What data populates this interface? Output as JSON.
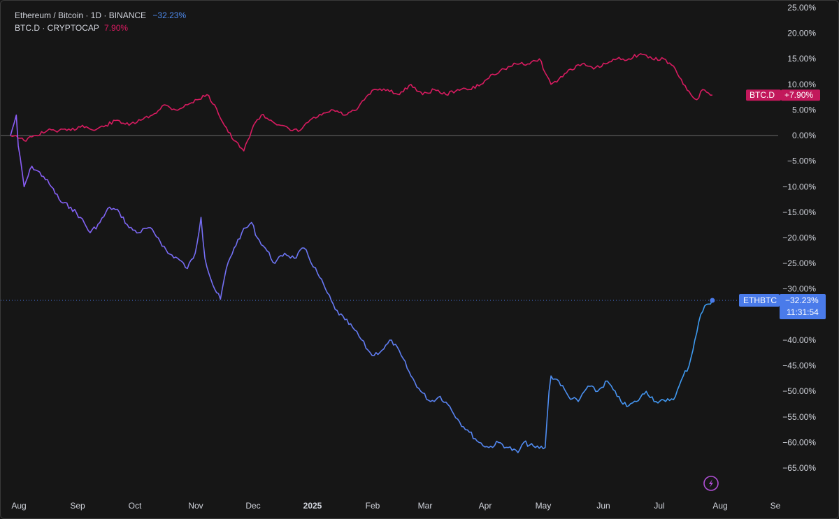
{
  "legend": {
    "ethbtc_label": "Ethereum / Bitcoin · 1D · BINANCE",
    "ethbtc_value": "−32.23%",
    "btcd_label": "BTC.D · CRYPTOCAP",
    "btcd_value": "7.90%"
  },
  "colors": {
    "background": "#161616",
    "ethbtc_start": "#8b5cf6",
    "ethbtc_end": "#3b9cf0",
    "btcd": "#d81b60",
    "zero_line": "#777777",
    "ethbtc_tag": "#4a7bea",
    "btcd_tag": "#c2185b"
  },
  "tags": {
    "btcd_symbol": "BTC.D",
    "btcd_value": "+7.90%",
    "ethbtc_symbol": "ETHBTC",
    "ethbtc_value": "−32.23%",
    "ethbtc_countdown": "11:31:54"
  },
  "footer_icon": "lightning-icon",
  "chart_data": {
    "type": "line",
    "x_ticks": [
      "Aug",
      "Sep",
      "Oct",
      "Nov",
      "Dec",
      "2025",
      "Feb",
      "Mar",
      "Apr",
      "May",
      "Jun",
      "Jul",
      "Aug",
      "Se"
    ],
    "y_ticks": [
      "25.00%",
      "20.00%",
      "15.00%",
      "10.00%",
      "5.00%",
      "0.00%",
      "−5.00%",
      "−10.00%",
      "−15.00%",
      "−20.00%",
      "−25.00%",
      "−30.00%",
      "−40.00%",
      "−45.00%",
      "−50.00%",
      "−55.00%",
      "−60.00%",
      "−65.00%"
    ],
    "ylim": [
      -67,
      25
    ],
    "series": [
      {
        "name": "ETHBTC",
        "x": [
          "2024-08-01",
          "2024-08-04",
          "2024-08-05",
          "2024-08-08",
          "2024-08-12",
          "2024-08-18",
          "2024-08-22",
          "2024-08-27",
          "2024-09-01",
          "2024-09-06",
          "2024-09-11",
          "2024-09-16",
          "2024-09-21",
          "2024-09-26",
          "2024-10-01",
          "2024-10-06",
          "2024-10-11",
          "2024-10-16",
          "2024-10-21",
          "2024-10-26",
          "2024-10-31",
          "2024-11-04",
          "2024-11-07",
          "2024-11-09",
          "2024-11-12",
          "2024-11-14",
          "2024-11-17",
          "2024-11-20",
          "2024-11-24",
          "2024-11-28",
          "2024-12-03",
          "2024-12-06",
          "2024-12-10",
          "2024-12-15",
          "2024-12-20",
          "2024-12-25",
          "2024-12-30",
          "2025-01-06",
          "2025-01-10",
          "2025-01-15",
          "2025-01-20",
          "2025-01-25",
          "2025-02-01",
          "2025-02-03",
          "2025-02-08",
          "2025-02-13",
          "2025-02-18",
          "2025-02-23",
          "2025-02-28",
          "2025-03-05",
          "2025-03-10",
          "2025-03-15",
          "2025-03-20",
          "2025-03-25",
          "2025-03-30",
          "2025-04-04",
          "2025-04-09",
          "2025-04-14",
          "2025-04-19",
          "2025-04-22",
          "2025-04-28",
          "2025-05-03",
          "2025-05-05",
          "2025-05-06",
          "2025-05-10",
          "2025-05-15",
          "2025-05-20",
          "2025-05-25",
          "2025-05-30",
          "2025-06-04",
          "2025-06-09",
          "2025-06-14",
          "2025-06-19",
          "2025-06-24",
          "2025-06-29",
          "2025-07-04",
          "2025-07-09",
          "2025-07-13",
          "2025-07-16",
          "2025-07-19",
          "2025-07-22",
          "2025-07-25",
          "2025-07-28"
        ],
        "values": [
          0,
          4,
          -2,
          -10,
          -6,
          -8,
          -10,
          -13,
          -14,
          -16,
          -19,
          -17,
          -14,
          -15,
          -18,
          -19,
          -18,
          -20,
          -23,
          -24,
          -26,
          -23,
          -16,
          -24,
          -28,
          -30,
          -32,
          -26,
          -22,
          -19,
          -17,
          -20,
          -22,
          -25,
          -23,
          -24,
          -22,
          -27,
          -30,
          -34,
          -36,
          -38,
          -42,
          -43,
          -42,
          -40,
          -43,
          -47,
          -50,
          -52,
          -51,
          -53,
          -56,
          -58,
          -60,
          -61,
          -60,
          -61,
          -62,
          -60,
          -61,
          -61,
          -50,
          -47,
          -48,
          -51,
          -52,
          -49,
          -50,
          -48,
          -51,
          -53,
          -52,
          -50,
          -52,
          -52,
          -51,
          -47,
          -45,
          -40,
          -35,
          -33,
          -32.23
        ]
      },
      {
        "name": "BTC.D",
        "x": [
          "2024-08-01",
          "2024-08-04",
          "2024-08-08",
          "2024-08-14",
          "2024-08-20",
          "2024-08-26",
          "2024-09-01",
          "2024-09-07",
          "2024-09-13",
          "2024-09-19",
          "2024-09-25",
          "2024-10-01",
          "2024-10-07",
          "2024-10-13",
          "2024-10-19",
          "2024-10-25",
          "2024-10-31",
          "2024-11-05",
          "2024-11-10",
          "2024-11-14",
          "2024-11-19",
          "2024-11-24",
          "2024-11-29",
          "2024-12-04",
          "2024-12-08",
          "2024-12-13",
          "2024-12-18",
          "2024-12-23",
          "2024-12-28",
          "2025-01-02",
          "2025-01-08",
          "2025-01-14",
          "2025-01-20",
          "2025-01-26",
          "2025-02-01",
          "2025-02-05",
          "2025-02-11",
          "2025-02-17",
          "2025-02-23",
          "2025-03-01",
          "2025-03-07",
          "2025-03-13",
          "2025-03-19",
          "2025-03-25",
          "2025-03-31",
          "2025-04-06",
          "2025-04-12",
          "2025-04-18",
          "2025-04-24",
          "2025-04-30",
          "2025-05-06",
          "2025-05-10",
          "2025-05-16",
          "2025-05-22",
          "2025-05-28",
          "2025-06-03",
          "2025-06-09",
          "2025-06-15",
          "2025-06-21",
          "2025-06-27",
          "2025-07-03",
          "2025-07-09",
          "2025-07-13",
          "2025-07-17",
          "2025-07-20",
          "2025-07-23",
          "2025-07-28"
        ],
        "values": [
          0,
          0,
          -1,
          0,
          1,
          1,
          1,
          2,
          1,
          2,
          3,
          2,
          3,
          4,
          6,
          5,
          6,
          7,
          8,
          6,
          2,
          -1,
          -3,
          2,
          4,
          3,
          2,
          1,
          1,
          3,
          4,
          5,
          4,
          5,
          8,
          9,
          9,
          8,
          10,
          8,
          9,
          8,
          9,
          9,
          10,
          12,
          13,
          14,
          14,
          15,
          10,
          11,
          13,
          14,
          13,
          14,
          15,
          15,
          16,
          15,
          15,
          13,
          10,
          8,
          7,
          9,
          7.9
        ]
      }
    ],
    "current_values": {
      "ETHBTC": -32.23,
      "BTC.D": 7.9
    },
    "grid": false,
    "zero_line": true
  }
}
